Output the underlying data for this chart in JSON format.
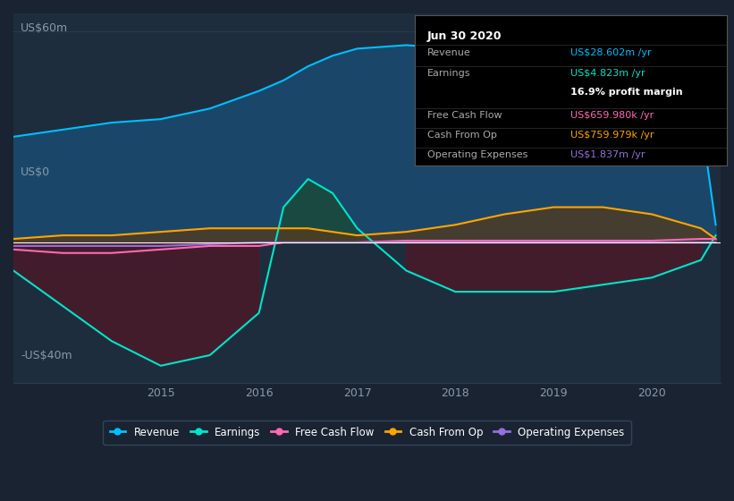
{
  "bg_color": "#1a2332",
  "plot_bg_color": "#1e2d3d",
  "title_label": "US$60m",
  "zero_label": "US$0",
  "neg_label": "-US$40m",
  "xlabel_years": [
    "2015",
    "2016",
    "2017",
    "2018",
    "2019",
    "2020"
  ],
  "ylim": [
    -40,
    65
  ],
  "xlim": [
    2013.5,
    2020.7
  ],
  "grid_color": "#2a3d52",
  "zero_line_color": "#ffffff",
  "tooltip_title": "Jun 30 2020",
  "tooltip_rows": [
    {
      "label": "Revenue",
      "value": "US$28.602m /yr",
      "value_color": "#00bfff"
    },
    {
      "label": "Earnings",
      "value": "US$4.823m /yr",
      "value_color": "#00e5c8"
    },
    {
      "label": "",
      "value": "16.9% profit margin",
      "value_color": "#ffffff",
      "bold": true
    },
    {
      "label": "Free Cash Flow",
      "value": "US$659.980k /yr",
      "value_color": "#ff69b4"
    },
    {
      "label": "Cash From Op",
      "value": "US$759.979k /yr",
      "value_color": "#ffa500"
    },
    {
      "label": "Operating Expenses",
      "value": "US$1.837m /yr",
      "value_color": "#9370db"
    }
  ],
  "revenue_color": "#00bfff",
  "earnings_color": "#00e5c8",
  "fcf_color": "#ff69b4",
  "cashop_color": "#ffa500",
  "opex_color": "#9370db",
  "revenue_fill_color": "#1a4a6e",
  "earnings_fill_neg_color": "#4a1a2a",
  "earnings_fill_pos_color": "#1a4a3a",
  "cashop_fill_color": "#5a3a1a",
  "legend_bg": "#1a2332",
  "legend_border": "#3a4d62",
  "years": [
    2013.5,
    2014.0,
    2014.5,
    2015.0,
    2015.5,
    2016.0,
    2016.25,
    2016.5,
    2016.75,
    2017.0,
    2017.5,
    2018.0,
    2018.5,
    2019.0,
    2019.5,
    2020.0,
    2020.5,
    2020.65
  ],
  "revenue": [
    30,
    32,
    34,
    35,
    38,
    43,
    46,
    50,
    53,
    55,
    56,
    55,
    54,
    55,
    54,
    50,
    35,
    5
  ],
  "earnings": [
    -8,
    -18,
    -28,
    -35,
    -32,
    -20,
    10,
    18,
    14,
    4,
    -8,
    -14,
    -14,
    -14,
    -12,
    -10,
    -5,
    2
  ],
  "fcf": [
    -2,
    -3,
    -3,
    -2,
    -1,
    -1,
    0,
    0,
    0,
    0,
    0.5,
    0.5,
    0.5,
    0.5,
    0.5,
    0.5,
    1,
    1
  ],
  "cashop": [
    1,
    2,
    2,
    3,
    4,
    4,
    4,
    4,
    3,
    2,
    3,
    5,
    8,
    10,
    10,
    8,
    4,
    1
  ],
  "opex": [
    -1,
    -1,
    -1,
    -1,
    -0.5,
    0,
    0,
    0,
    0,
    0,
    0,
    0,
    0,
    0,
    0,
    0,
    0,
    0
  ]
}
